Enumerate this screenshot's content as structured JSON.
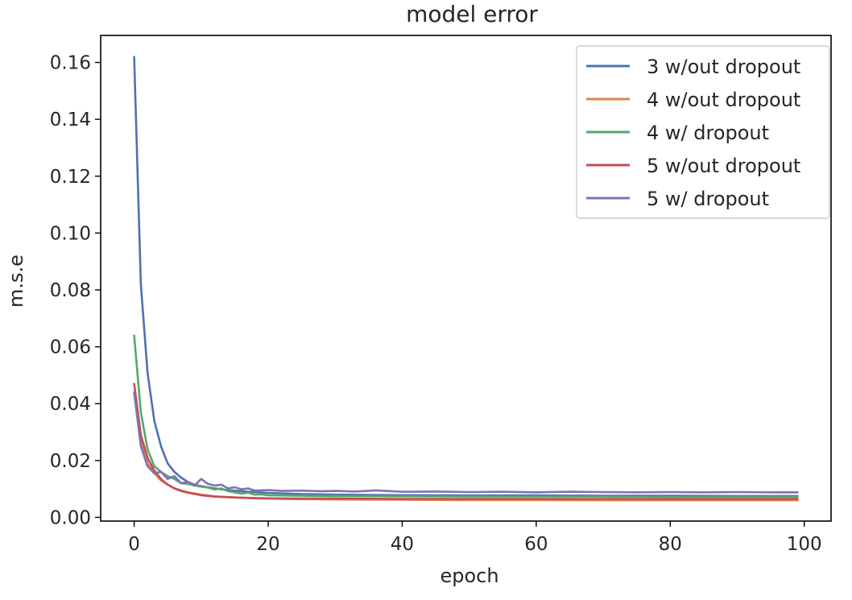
{
  "chart_data": {
    "type": "line",
    "title": "model error",
    "xlabel": "epoch",
    "ylabel": "m.s.e",
    "xlim": [
      -5,
      104
    ],
    "ylim": [
      -0.0013,
      0.1695
    ],
    "xticks": [
      0,
      20,
      40,
      60,
      80,
      100
    ],
    "yticks": [
      0.0,
      0.02,
      0.04,
      0.06,
      0.08,
      0.1,
      0.12,
      0.14,
      0.16
    ],
    "ytick_labels": [
      "0.00",
      "0.02",
      "0.04",
      "0.06",
      "0.08",
      "0.10",
      "0.12",
      "0.14",
      "0.16"
    ],
    "xtick_labels": [
      "0",
      "20",
      "40",
      "60",
      "80",
      "100"
    ],
    "grid": false,
    "legend_position": "top-right",
    "series": [
      {
        "name": "3 w/out dropout",
        "color": "#4c72b0",
        "x": [
          0,
          1,
          2,
          3,
          4,
          5,
          6,
          7,
          8,
          9,
          10,
          12,
          14,
          17,
          20,
          25,
          30,
          40,
          50,
          60,
          70,
          80,
          90,
          99
        ],
        "y": [
          0.162,
          0.082,
          0.051,
          0.034,
          0.025,
          0.019,
          0.016,
          0.014,
          0.0125,
          0.0115,
          0.011,
          0.0102,
          0.0096,
          0.009,
          0.0086,
          0.0082,
          0.008,
          0.0078,
          0.0077,
          0.0077,
          0.0076,
          0.0076,
          0.0075,
          0.0075
        ]
      },
      {
        "name": "4 w/out dropout",
        "color": "#dd8452",
        "x": [
          0,
          1,
          2,
          3,
          4,
          5,
          6,
          8,
          10,
          12,
          15,
          18,
          20,
          25,
          30,
          40,
          50,
          60,
          70,
          80,
          90,
          99
        ],
        "y": [
          0.044,
          0.027,
          0.019,
          0.0155,
          0.013,
          0.0115,
          0.0102,
          0.0088,
          0.008,
          0.0074,
          0.007,
          0.0067,
          0.0066,
          0.0064,
          0.0063,
          0.0062,
          0.0061,
          0.0061,
          0.006,
          0.006,
          0.006,
          0.006
        ]
      },
      {
        "name": "4 w/ dropout",
        "color": "#55a868",
        "x": [
          0,
          1,
          2,
          3,
          4,
          5,
          6,
          7,
          8,
          9,
          10,
          11,
          12,
          13,
          14,
          15,
          16,
          17,
          18,
          19,
          20,
          25,
          30,
          40,
          50,
          60,
          70,
          80,
          90,
          99
        ],
        "y": [
          0.064,
          0.037,
          0.024,
          0.018,
          0.016,
          0.0145,
          0.0135,
          0.012,
          0.0118,
          0.0112,
          0.0108,
          0.0105,
          0.0098,
          0.0102,
          0.0092,
          0.0088,
          0.0084,
          0.0087,
          0.008,
          0.0081,
          0.0078,
          0.0076,
          0.0075,
          0.0074,
          0.0073,
          0.0073,
          0.0073,
          0.0072,
          0.0072,
          0.0072
        ]
      },
      {
        "name": "5 w/out dropout",
        "color": "#c44e52",
        "x": [
          0,
          1,
          2,
          3,
          4,
          5,
          6,
          7,
          8,
          10,
          12,
          15,
          18,
          20,
          25,
          30,
          40,
          50,
          60,
          70,
          80,
          90,
          99
        ],
        "y": [
          0.047,
          0.029,
          0.021,
          0.0165,
          0.0135,
          0.0115,
          0.0102,
          0.0093,
          0.0087,
          0.0078,
          0.0073,
          0.007,
          0.0068,
          0.0067,
          0.0066,
          0.0066,
          0.0065,
          0.0065,
          0.0065,
          0.0065,
          0.0065,
          0.0065,
          0.0065
        ]
      },
      {
        "name": "5 w/ dropout",
        "color": "#8172b3",
        "x": [
          0,
          1,
          2,
          3,
          4,
          5,
          6,
          7,
          8,
          9,
          10,
          11,
          12,
          13,
          14,
          15,
          16,
          17,
          18,
          20,
          22,
          25,
          28,
          30,
          33,
          36,
          40,
          45,
          50,
          55,
          60,
          65,
          70,
          75,
          80,
          85,
          90,
          95,
          99
        ],
        "y": [
          0.044,
          0.025,
          0.018,
          0.0155,
          0.016,
          0.0135,
          0.0145,
          0.012,
          0.0125,
          0.0112,
          0.0135,
          0.0118,
          0.0112,
          0.0115,
          0.0102,
          0.0106,
          0.0099,
          0.0102,
          0.0094,
          0.0096,
          0.0093,
          0.0094,
          0.0092,
          0.0093,
          0.0091,
          0.0095,
          0.009,
          0.0091,
          0.0089,
          0.009,
          0.0088,
          0.009,
          0.0089,
          0.0088,
          0.0089,
          0.0088,
          0.0089,
          0.0088,
          0.0088
        ]
      }
    ]
  }
}
